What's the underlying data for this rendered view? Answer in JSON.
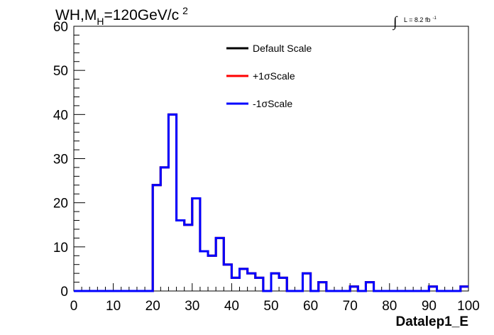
{
  "chart_data": {
    "type": "histogram-step",
    "title": {
      "main": "WH,M",
      "subscript": "H",
      "rest": "=120GeV/c",
      "superscript": "2"
    },
    "luminosity": {
      "integral_symbol": "∫",
      "text": "L = 8.2 fb",
      "superscript": "-1"
    },
    "xlabel": "Datalep1_E",
    "ylabel": "",
    "xlim": [
      0,
      100
    ],
    "ylim": [
      0,
      60
    ],
    "x_ticks": [
      0,
      10,
      20,
      30,
      40,
      50,
      60,
      70,
      80,
      90,
      100
    ],
    "x_tick_labels": [
      "0",
      "10",
      "20",
      "30",
      "40",
      "50",
      "60",
      "70",
      "80",
      "90",
      "100"
    ],
    "y_ticks": [
      0,
      10,
      20,
      30,
      40,
      50,
      60
    ],
    "y_tick_labels": [
      "0",
      "10",
      "20",
      "30",
      "40",
      "50",
      "60"
    ],
    "bin_width": 2,
    "bin_edges_start": 0,
    "grid": false,
    "legend_position": "top-center",
    "series": [
      {
        "name": "Default Scale",
        "color": "#000000",
        "values": [
          0,
          0,
          0,
          0,
          0,
          0,
          0,
          0,
          0,
          0,
          24,
          28,
          40,
          16,
          15,
          21,
          9,
          8,
          12,
          6,
          3,
          5,
          4,
          3,
          0,
          4,
          3,
          0,
          0,
          4,
          0,
          2,
          0,
          0,
          0,
          1,
          0,
          2,
          0,
          0,
          0,
          0,
          0,
          0,
          0,
          1,
          0,
          0,
          0,
          1
        ]
      },
      {
        "name": "+1σScale",
        "color": "#ff0000",
        "values": [
          0,
          0,
          0,
          0,
          0,
          0,
          0,
          0,
          0,
          0,
          24,
          28,
          40,
          16,
          15,
          21,
          9,
          8,
          12,
          6,
          3,
          5,
          4,
          3,
          0,
          4,
          3,
          0,
          0,
          4,
          0,
          2,
          0,
          0,
          0,
          1,
          0,
          2,
          0,
          0,
          0,
          0,
          0,
          0,
          0,
          1,
          0,
          0,
          0,
          1
        ]
      },
      {
        "name": "-1σScale",
        "color": "#0000ff",
        "values": [
          0,
          0,
          0,
          0,
          0,
          0,
          0,
          0,
          0,
          0,
          24,
          28,
          40,
          16,
          15,
          21,
          9,
          8,
          12,
          6,
          3,
          5,
          4,
          3,
          0,
          4,
          3,
          0,
          0,
          4,
          0,
          2,
          0,
          0,
          0,
          1,
          0,
          2,
          0,
          0,
          0,
          0,
          0,
          0,
          0,
          1,
          0,
          0,
          0,
          1
        ]
      }
    ]
  }
}
